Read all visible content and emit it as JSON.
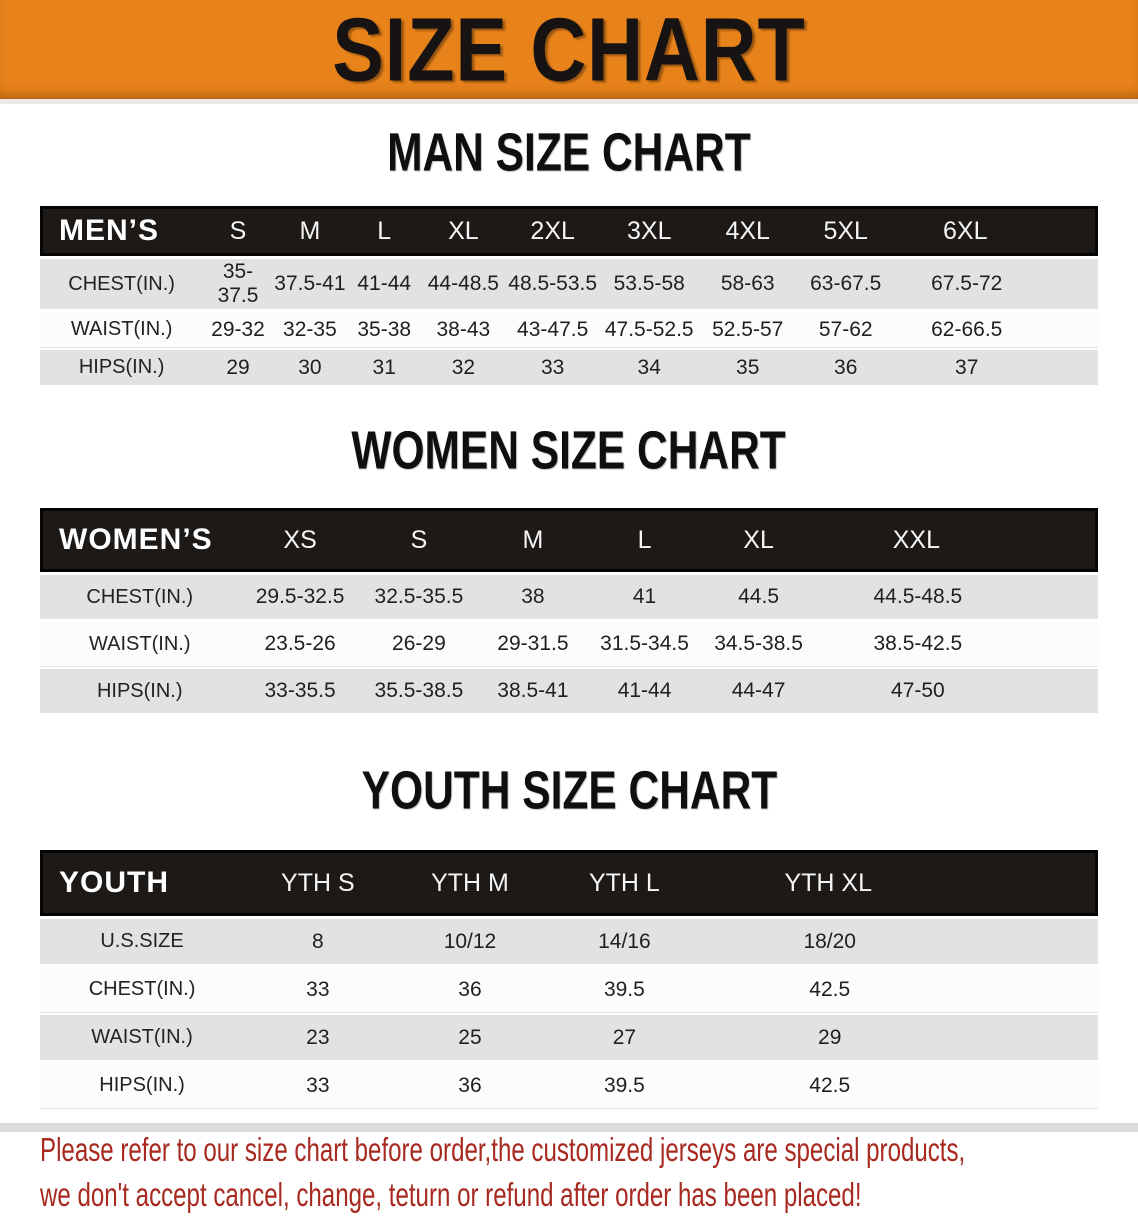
{
  "banner": {
    "title": "SIZE CHART",
    "bg_color": "#e8821a"
  },
  "sections": [
    {
      "id": "men",
      "title": "MAN SIZE CHART",
      "header": [
        "MEN’S",
        "S",
        "M",
        "L",
        "XL",
        "2XL",
        "3XL",
        "4XL",
        "5XL",
        "6XL"
      ],
      "rows": [
        [
          "CHEST(IN.)",
          "35-37.5",
          "37.5-41",
          "41-44",
          "44-48.5",
          "48.5-53.5",
          "53.5-58",
          "58-63",
          "63-67.5",
          "67.5-72"
        ],
        [
          "WAIST(IN.)",
          "29-32",
          "32-35",
          "35-38",
          "38-43",
          "43-47.5",
          "47.5-52.5",
          "52.5-57",
          "57-62",
          "62-66.5"
        ],
        [
          "HIPS(IN.)",
          "29",
          "30",
          "31",
          "32",
          "33",
          "34",
          "35",
          "36",
          "37"
        ]
      ]
    },
    {
      "id": "women",
      "title": "WOMEN SIZE CHART",
      "header": [
        "WOMEN’S",
        "XS",
        "S",
        "M",
        "L",
        "XL",
        "XXL"
      ],
      "rows": [
        [
          "CHEST(IN.)",
          "29.5-32.5",
          "32.5-35.5",
          "38",
          "41",
          "44.5",
          "44.5-48.5"
        ],
        [
          "WAIST(IN.)",
          "23.5-26",
          "26-29",
          "29-31.5",
          "31.5-34.5",
          "34.5-38.5",
          "38.5-42.5"
        ],
        [
          "HIPS(IN.)",
          "33-35.5",
          "35.5-38.5",
          "38.5-41",
          "41-44",
          "44-47",
          "47-50"
        ]
      ]
    },
    {
      "id": "youth",
      "title": "YOUTH SIZE CHART",
      "header": [
        "YOUTH",
        "YTH S",
        "YTH M",
        "YTH L",
        "YTH XL"
      ],
      "rows": [
        [
          "U.S.SIZE",
          "8",
          "10/12",
          "14/16",
          "18/20"
        ],
        [
          "CHEST(IN.)",
          "33",
          "36",
          "39.5",
          "42.5"
        ],
        [
          "WAIST(IN.)",
          "23",
          "25",
          "27",
          "29"
        ],
        [
          "HIPS(IN.)",
          "33",
          "36",
          "39.5",
          "42.5"
        ]
      ]
    }
  ],
  "footer": {
    "lines": [
      "Please refer to our size chart before order,the customized jerseys are special products,",
      "we don't accept cancel, change, teturn or refund after order has been placed!"
    ],
    "text_color": "#a7291f"
  }
}
